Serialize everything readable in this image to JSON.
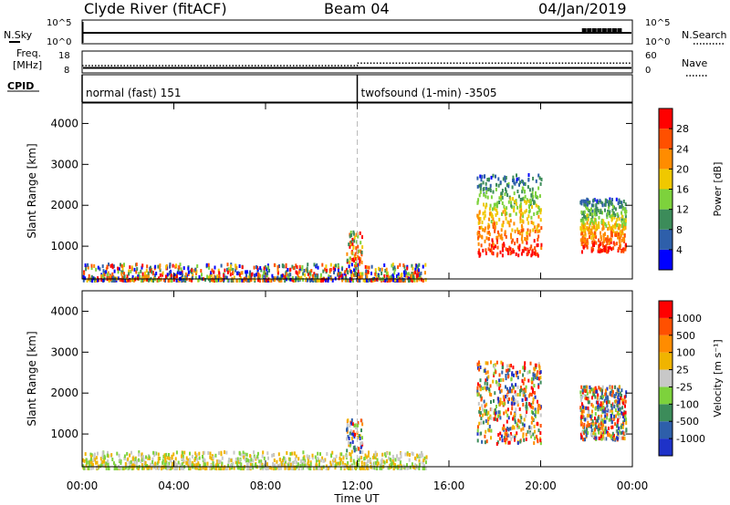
{
  "header": {
    "station": "Clyde River (fitACF)",
    "beam": "Beam 04",
    "date": "04/Jan/2019"
  },
  "noise_panel": {
    "left_label": "N.Sky",
    "right_label": "N.Search",
    "left_ticks": [
      "10^5",
      "10^0"
    ],
    "right_ticks": [
      "10^5",
      "10^0"
    ]
  },
  "freq_panel": {
    "left_label_line1": "Freq.",
    "left_label_line2": "[MHz]",
    "right_label": "Nave",
    "left_ticks": [
      "18",
      "8"
    ],
    "right_ticks": [
      "60",
      "0"
    ],
    "freq_value_mhz": 10.3,
    "nave_before": 20,
    "nave_after": 27
  },
  "cpid_panel": {
    "label": "CPID",
    "modes": [
      {
        "text": "normal (fast) 151",
        "start_hour": 0
      },
      {
        "text": "twofsound (1-min) -3505",
        "start_hour": 12
      }
    ]
  },
  "colors": {
    "power": [
      "#0000ff",
      "#2e5faa",
      "#3c8c5a",
      "#7dd23c",
      "#f0c800",
      "#ff8c00",
      "#ff5000",
      "#ff0000"
    ],
    "velocity": [
      "#ff0000",
      "#ff5000",
      "#ff8c00",
      "#f0b400",
      "#c8c8c8",
      "#7dd23c",
      "#3c8c5a",
      "#2e5faa",
      "#1e32c8"
    ]
  },
  "chart_data": [
    {
      "type": "heatmap",
      "title": "",
      "xlabel": "Time UT",
      "ylabel": "Slant Range [km]",
      "x_tick_labels": [
        "00:00",
        "04:00",
        "08:00",
        "12:00",
        "16:00",
        "20:00",
        "00:00"
      ],
      "x_ticks_hours": [
        0,
        4,
        8,
        12,
        16,
        20,
        24
      ],
      "xlim_hours": [
        0,
        24
      ],
      "y_tick_labels": [
        "1000",
        "2000",
        "3000",
        "4000"
      ],
      "y_ticks": [
        1000,
        2000,
        3000,
        4000
      ],
      "ylim": [
        200,
        4500
      ],
      "colorbar": {
        "label": "Power [dB]",
        "tick_labels": [
          "4",
          "8",
          "12",
          "16",
          "20",
          "24",
          "28"
        ],
        "range": [
          0,
          32
        ]
      },
      "echo_regions": [
        {
          "t0": 0.0,
          "t1": 15.0,
          "r0": 200,
          "r1": 600,
          "level": "low"
        },
        {
          "t0": 11.5,
          "t1": 12.2,
          "r0": 600,
          "r1": 1400,
          "level": "mid"
        },
        {
          "t0": 17.2,
          "t1": 20.0,
          "r0": 800,
          "r1": 2800,
          "level": "high"
        },
        {
          "t0": 21.7,
          "t1": 23.7,
          "r0": 900,
          "r1": 2200,
          "level": "high"
        }
      ]
    },
    {
      "type": "heatmap",
      "title": "",
      "xlabel": "Time UT",
      "ylabel": "Slant Range [km]",
      "x_tick_labels": [
        "00:00",
        "04:00",
        "08:00",
        "12:00",
        "16:00",
        "20:00",
        "00:00"
      ],
      "x_ticks_hours": [
        0,
        4,
        8,
        12,
        16,
        20,
        24
      ],
      "xlim_hours": [
        0,
        24
      ],
      "y_tick_labels": [
        "1000",
        "2000",
        "3000",
        "4000"
      ],
      "y_ticks": [
        1000,
        2000,
        3000,
        4000
      ],
      "ylim": [
        200,
        4500
      ],
      "colorbar": {
        "label": "Velocity [m s⁻¹]",
        "tick_labels": [
          "1000",
          "500",
          "100",
          "25",
          "-25",
          "-100",
          "-500",
          "-1000"
        ]
      },
      "echo_regions": [
        {
          "t0": 0.0,
          "t1": 15.0,
          "r0": 200,
          "r1": 600,
          "level": "low"
        },
        {
          "t0": 11.5,
          "t1": 12.2,
          "r0": 600,
          "r1": 1400,
          "level": "mid"
        },
        {
          "t0": 17.2,
          "t1": 20.0,
          "r0": 800,
          "r1": 2800,
          "level": "high"
        },
        {
          "t0": 21.7,
          "t1": 23.7,
          "r0": 900,
          "r1": 2200,
          "level": "high"
        }
      ]
    }
  ]
}
